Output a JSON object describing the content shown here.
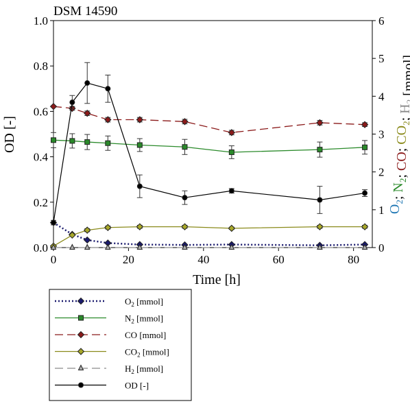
{
  "chart_data": {
    "type": "line",
    "title": "DSM 14590",
    "xlabel": "Time [h]",
    "ylabel_left": "OD [-]",
    "ylabel_right": {
      "parts": [
        {
          "text": "O",
          "sub": "2",
          "color": "#1f77b4"
        },
        {
          "text": "; ",
          "sub": "",
          "color": "#000000"
        },
        {
          "text": "N",
          "sub": "2",
          "color": "#2a8a2a"
        },
        {
          "text": "; ",
          "sub": "",
          "color": "#000000"
        },
        {
          "text": "CO",
          "sub": "",
          "color": "#8b1a1a"
        },
        {
          "text": "; ",
          "sub": "",
          "color": "#000000"
        },
        {
          "text": "CO",
          "sub": "2",
          "color": "#8a8a1a"
        },
        {
          "text": "; ",
          "sub": "",
          "color": "#000000"
        },
        {
          "text": "H",
          "sub": "2",
          "color": "#8a8a8a"
        },
        {
          "text": " [mmol]",
          "sub": "",
          "color": "#000000"
        }
      ]
    },
    "xlim": [
      0,
      85
    ],
    "ylim_left": [
      0,
      1.0
    ],
    "ylim_right": [
      0,
      6
    ],
    "x_ticks": [
      "0",
      "20",
      "40",
      "60",
      "80"
    ],
    "y_left_ticks": [
      "0.0",
      "0.2",
      "0.4",
      "0.6",
      "0.8",
      "1.0"
    ],
    "y_right_ticks": [
      "0",
      "1",
      "2",
      "3",
      "4",
      "5",
      "6"
    ],
    "grid": false,
    "legend_placement": "below",
    "series": [
      {
        "key": "o2",
        "label_main": "O",
        "label_sub": "2",
        "label_unit": "[mmol]",
        "axis": "right",
        "color": "#1a1a6e",
        "dash": "2,3",
        "stroke_width": 2.5,
        "marker": "diamond",
        "marker_fill": "#1a1a6e",
        "x": [
          0,
          5,
          9,
          14.5,
          23,
          35,
          47.5,
          71,
          83
        ],
        "y": [
          0.66,
          0.35,
          0.2,
          0.12,
          0.08,
          0.07,
          0.08,
          0.06,
          0.08
        ],
        "err": [
          0,
          0,
          0,
          0,
          0,
          0,
          0,
          0,
          0
        ]
      },
      {
        "key": "n2",
        "label_main": "N",
        "label_sub": "2",
        "label_unit": "[mmol]",
        "axis": "right",
        "color": "#2a8a2a",
        "dash": "",
        "stroke_width": 1.3,
        "marker": "square",
        "marker_fill": "#2a8a2a",
        "x": [
          0,
          5,
          9,
          14.5,
          23,
          35,
          47.5,
          71,
          83
        ],
        "y": [
          2.84,
          2.82,
          2.79,
          2.76,
          2.71,
          2.66,
          2.52,
          2.59,
          2.65
        ],
        "err": [
          0.2,
          0.19,
          0.2,
          0.19,
          0.17,
          0.2,
          0.17,
          0.2,
          0.18
        ]
      },
      {
        "key": "co",
        "label_main": "CO",
        "label_sub": "",
        "label_unit": "[mmol]",
        "axis": "right",
        "color": "#8b1a1a",
        "dash": "12,6",
        "stroke_width": 1.3,
        "marker": "diamond",
        "marker_fill": "#8b1a1a",
        "x": [
          0,
          5,
          9,
          14.5,
          23,
          35,
          47.5,
          71,
          83
        ],
        "y": [
          3.73,
          3.68,
          3.55,
          3.38,
          3.38,
          3.33,
          3.04,
          3.3,
          3.25
        ],
        "err": [
          0,
          0.05,
          0.06,
          0.06,
          0.06,
          0.06,
          0.06,
          0.06,
          0.05
        ]
      },
      {
        "key": "co2",
        "label_main": "CO",
        "label_sub": "2",
        "label_unit": "[mmol]",
        "axis": "right",
        "color": "#8a8a1a",
        "dash": "",
        "stroke_width": 1.3,
        "marker": "diamond",
        "marker_fill": "#a8a82a",
        "x": [
          0,
          5,
          9,
          14.5,
          23,
          35,
          47.5,
          71,
          83
        ],
        "y": [
          0.04,
          0.33,
          0.46,
          0.53,
          0.55,
          0.55,
          0.51,
          0.55,
          0.55
        ],
        "err": [
          0,
          0,
          0.04,
          0.04,
          0.04,
          0.04,
          0.03,
          0.04,
          0.04
        ]
      },
      {
        "key": "h2",
        "label_main": "H",
        "label_sub": "2",
        "label_unit": "[mmol]",
        "axis": "right",
        "color": "#8a8a8a",
        "dash": "12,6",
        "stroke_width": 1.2,
        "marker": "triangle",
        "marker_fill": "#b0b0b0",
        "x": [
          0,
          5,
          9,
          14.5,
          23,
          35,
          47.5,
          71,
          83
        ],
        "y": [
          0,
          0,
          0,
          0,
          0,
          0,
          0,
          0,
          0
        ],
        "err": [
          0,
          0,
          0,
          0,
          0,
          0,
          0,
          0,
          0
        ]
      },
      {
        "key": "od",
        "label_main": "OD",
        "label_sub": "",
        "label_unit": "[-]",
        "axis": "left",
        "color": "#000000",
        "dash": "",
        "stroke_width": 1.2,
        "marker": "circle",
        "marker_fill": "#000000",
        "x": [
          0,
          5,
          9,
          14.5,
          23,
          35,
          47.5,
          71,
          83
        ],
        "y": [
          0.11,
          0.64,
          0.725,
          0.7,
          0.27,
          0.22,
          0.25,
          0.21,
          0.24
        ],
        "err": [
          0.01,
          0.03,
          0.09,
          0.06,
          0.05,
          0.03,
          0.01,
          0.06,
          0.015
        ]
      }
    ]
  }
}
